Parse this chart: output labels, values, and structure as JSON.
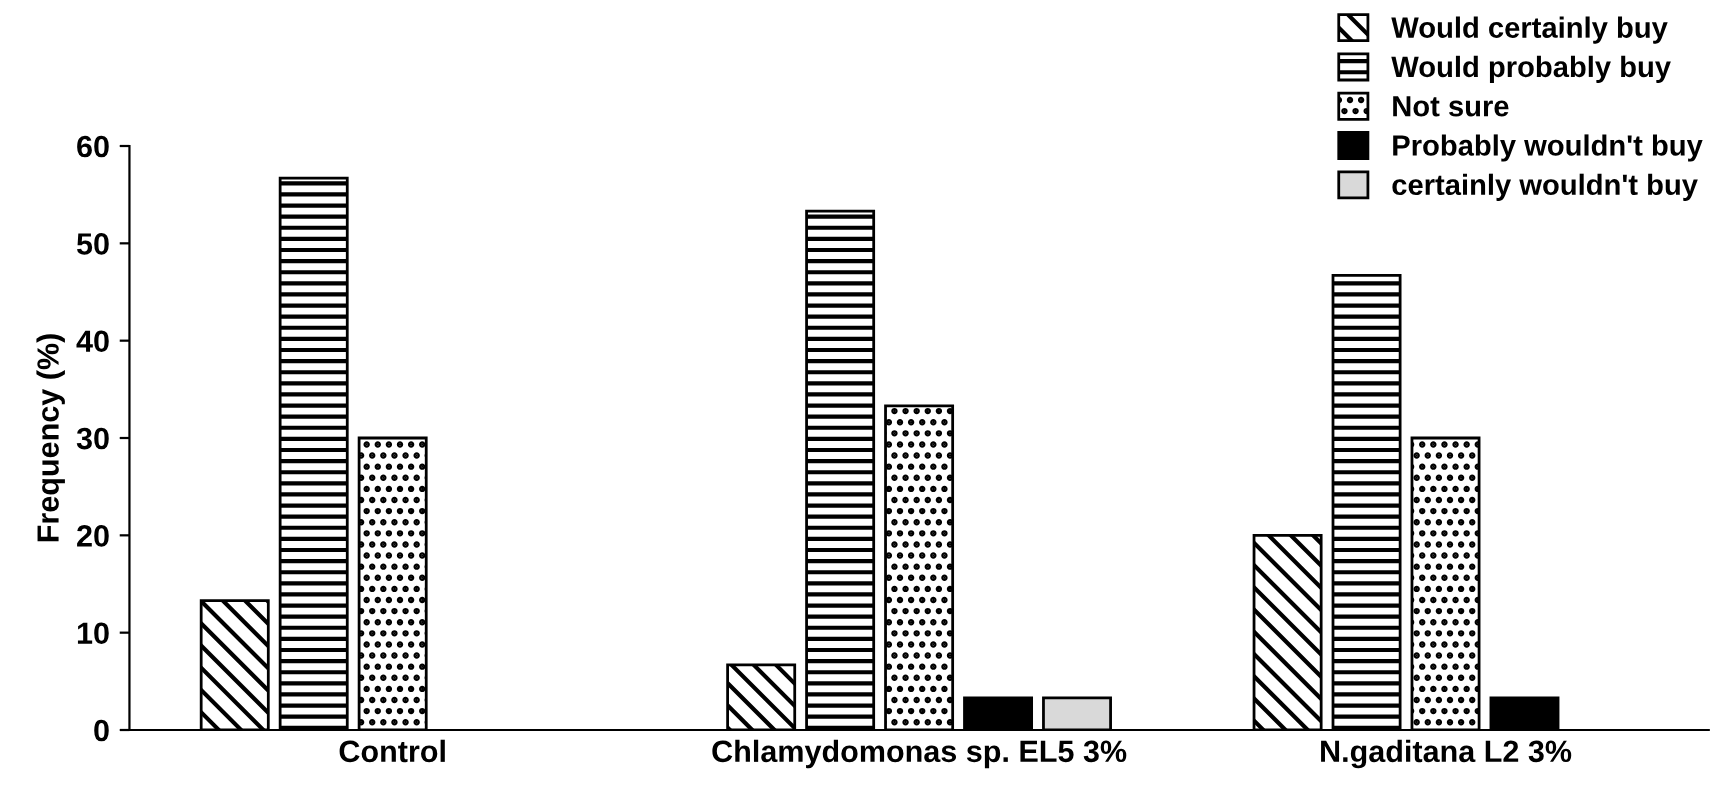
{
  "chart_data": {
    "type": "bar",
    "ylabel": "Frequency (%)",
    "categories": [
      "Control",
      "Chlamydomonas sp. EL5 3%",
      "N.gaditana L2 3%"
    ],
    "series": [
      {
        "name": "Would certainly buy",
        "color": "#000000",
        "values": [
          13.3,
          6.7,
          20
        ]
      },
      {
        "name": "Would probably buy",
        "color": "#000000",
        "values": [
          56.7,
          53.3,
          46.7
        ]
      },
      {
        "name": "Not sure",
        "color": "#000000",
        "values": [
          30,
          33.3,
          30
        ]
      },
      {
        "name": "Probably wouldn't buy",
        "color": "#000000",
        "values": [
          null,
          3.3,
          3.3
        ]
      },
      {
        "name": "certainly wouldn't buy",
        "color": "#d9d9d9",
        "values": [
          null,
          3.3,
          null
        ]
      }
    ],
    "ylim": [
      0,
      60
    ],
    "yticks": [
      0,
      10,
      20,
      30,
      40,
      50,
      60
    ],
    "grid": false,
    "legend": "top right"
  }
}
